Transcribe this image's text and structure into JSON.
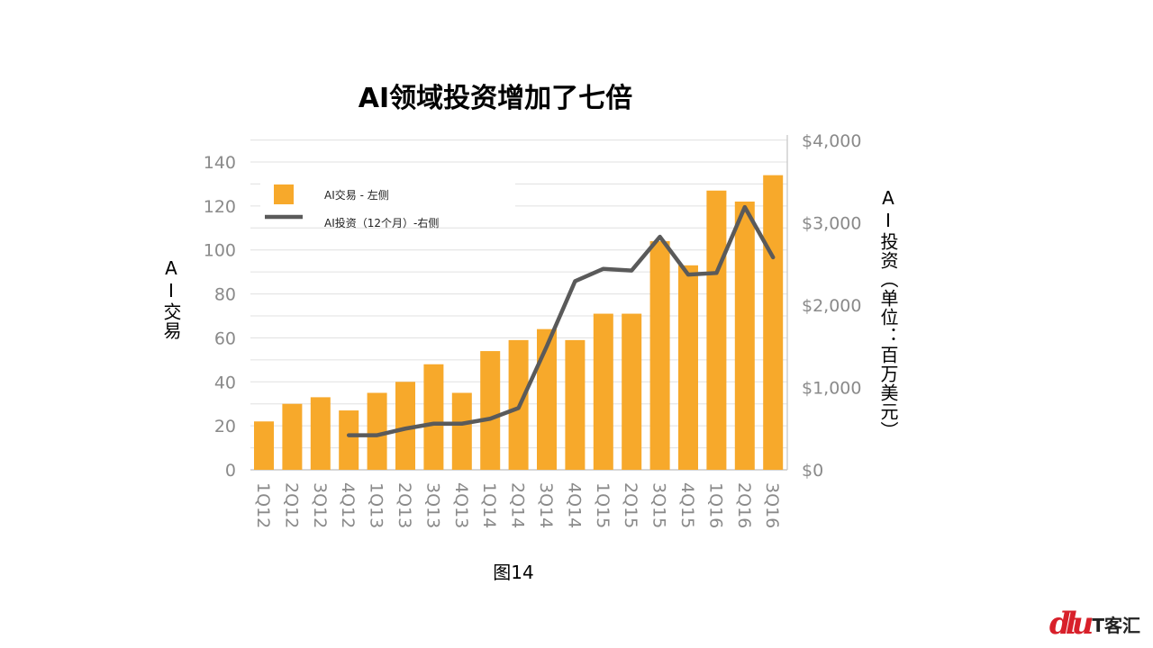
{
  "title": "AI领域投资增加了七倍",
  "left_axis_label": "AI交易",
  "right_axis_label": "AI投资（单位：百万美元）",
  "caption": "图14",
  "logo": {
    "mark": "dlu",
    "text": "T客汇"
  },
  "colors": {
    "bar": "#f7a92b",
    "line": "#5a5a5a",
    "grid": "#e0e0e0",
    "tick": "#8a8a8a"
  },
  "chart_data": {
    "type": "bar",
    "categories": [
      "1Q12",
      "2Q12",
      "3Q12",
      "4Q12",
      "1Q13",
      "2Q13",
      "3Q13",
      "4Q13",
      "1Q14",
      "2Q14",
      "3Q14",
      "4Q14",
      "1Q15",
      "2Q15",
      "3Q15",
      "4Q15",
      "1Q16",
      "2Q16",
      "3Q16"
    ],
    "series": [
      {
        "name": "AI交易 - 左侧",
        "type": "bar",
        "axis": "left",
        "values": [
          22,
          30,
          33,
          27,
          35,
          40,
          48,
          35,
          54,
          59,
          64,
          59,
          71,
          71,
          104,
          93,
          127,
          122,
          134
        ]
      },
      {
        "name": "AI投资（12个月）-右侧",
        "type": "line",
        "axis": "right",
        "values": [
          null,
          null,
          null,
          420,
          420,
          500,
          560,
          560,
          620,
          750,
          1500,
          2290,
          2440,
          2420,
          2830,
          2370,
          2390,
          3190,
          2580
        ]
      }
    ],
    "left_axis": {
      "ylim": [
        0,
        150
      ],
      "ticks": [
        0,
        20,
        40,
        60,
        80,
        100,
        120,
        140
      ]
    },
    "right_axis": {
      "ylim": [
        0,
        4000
      ],
      "ticks": [
        "$0",
        "$1,000",
        "$2,000",
        "$3,000",
        "$4,000"
      ],
      "tick_values": [
        0,
        1000,
        2000,
        3000,
        4000
      ]
    },
    "legend_position": "top-left",
    "grid": true
  }
}
